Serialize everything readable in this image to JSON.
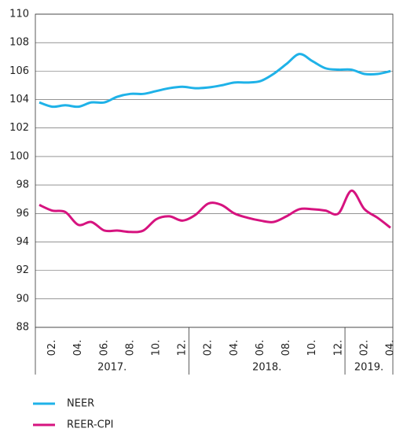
{
  "chart_data": {
    "type": "line",
    "categories": [
      null,
      "02.",
      null,
      "04.",
      null,
      "06.",
      null,
      "08.",
      null,
      "10.",
      null,
      "12.",
      null,
      "02.",
      null,
      "04.",
      null,
      "06.",
      null,
      "08.",
      null,
      "10.",
      null,
      "12.",
      null,
      "02.",
      null,
      "04."
    ],
    "year_groups": [
      {
        "label": "2017.",
        "count": 12
      },
      {
        "label": "2018.",
        "count": 12
      },
      {
        "label": "2019.",
        "count": 4
      }
    ],
    "series": [
      {
        "name": "NEER",
        "color": "#1fb2e8",
        "values": [
          103.8,
          103.5,
          103.6,
          103.5,
          103.8,
          103.8,
          104.2,
          104.4,
          104.4,
          104.6,
          104.8,
          104.9,
          104.8,
          104.85,
          105.0,
          105.2,
          105.2,
          105.3,
          105.8,
          106.5,
          107.2,
          106.7,
          106.2,
          106.1,
          106.1,
          105.8,
          105.8,
          106.0
        ]
      },
      {
        "name": "REER-CPI",
        "color": "#d6137f",
        "values": [
          96.6,
          96.2,
          96.1,
          95.2,
          95.4,
          94.8,
          94.8,
          94.7,
          94.8,
          95.6,
          95.8,
          95.5,
          95.9,
          96.7,
          96.6,
          96.0,
          95.7,
          95.5,
          95.4,
          95.8,
          96.3,
          96.3,
          96.2,
          96.0,
          97.6,
          96.3,
          95.7,
          95.0
        ]
      }
    ],
    "ylim": [
      88,
      110
    ],
    "yticks": [
      88,
      90,
      92,
      94,
      96,
      98,
      100,
      102,
      104,
      106,
      108,
      110
    ],
    "grid": true
  }
}
